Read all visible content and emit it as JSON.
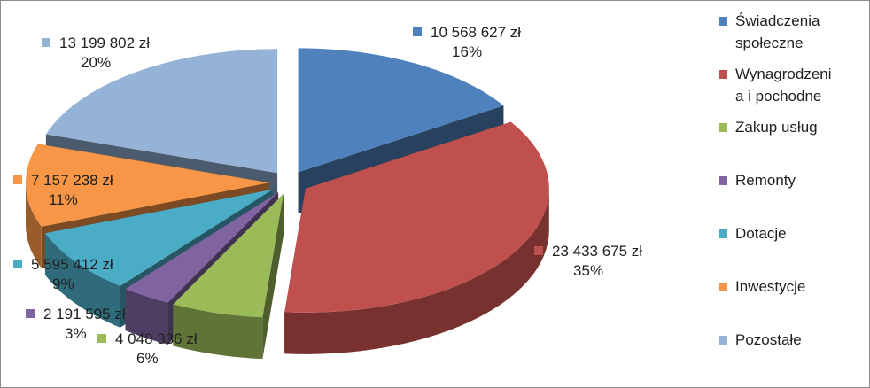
{
  "chart_data": {
    "type": "pie",
    "title": "",
    "style": "3d exploded pie",
    "legend_position": "right",
    "currency": "zł",
    "slices": [
      {
        "category": "Świadczenia społeczne",
        "value": 10568627,
        "value_label": "10 568 627 zł",
        "percent_label": "16%",
        "color": "#4F81BD"
      },
      {
        "category": "Wynagrodzenia i pochodne",
        "value": 23433675,
        "value_label": "23 433 675 zł",
        "percent_label": "35%",
        "color": "#C0504D"
      },
      {
        "category": "Zakup usług",
        "value": 4048336,
        "value_label": "4 048 336 zł",
        "percent_label": "6%",
        "color": "#9BBB59"
      },
      {
        "category": "Remonty",
        "value": 2191595,
        "value_label": "2 191 595 zł",
        "percent_label": "3%",
        "color": "#8064A2"
      },
      {
        "category": "Dotacje",
        "value": 5595412,
        "value_label": "5 595 412 zł",
        "percent_label": "9%",
        "color": "#4BACC6"
      },
      {
        "category": "Inwestycje",
        "value": 7157238,
        "value_label": "7 157 238 zł",
        "percent_label": "11%",
        "color": "#F79646"
      },
      {
        "category": "Pozostałe",
        "value": 13199802,
        "value_label": "13 199 802 zł",
        "percent_label": "20%",
        "color": "#95B3D7"
      }
    ],
    "legend": {
      "entries": [
        {
          "lines": [
            "Świadczenia",
            "społeczne"
          ],
          "color": "#4F81BD"
        },
        {
          "lines": [
            "Wynagrodzeni",
            "a i pochodne"
          ],
          "color": "#C0504D"
        },
        {
          "lines": [
            "Zakup usług"
          ],
          "color": "#9BBB59"
        },
        {
          "lines": [
            "Remonty"
          ],
          "color": "#8064A2"
        },
        {
          "lines": [
            "Dotacje"
          ],
          "color": "#4BACC6"
        },
        {
          "lines": [
            "Inwestycje"
          ],
          "color": "#F79646"
        },
        {
          "lines": [
            "Pozostałe"
          ],
          "color": "#95B3D7"
        }
      ]
    }
  }
}
